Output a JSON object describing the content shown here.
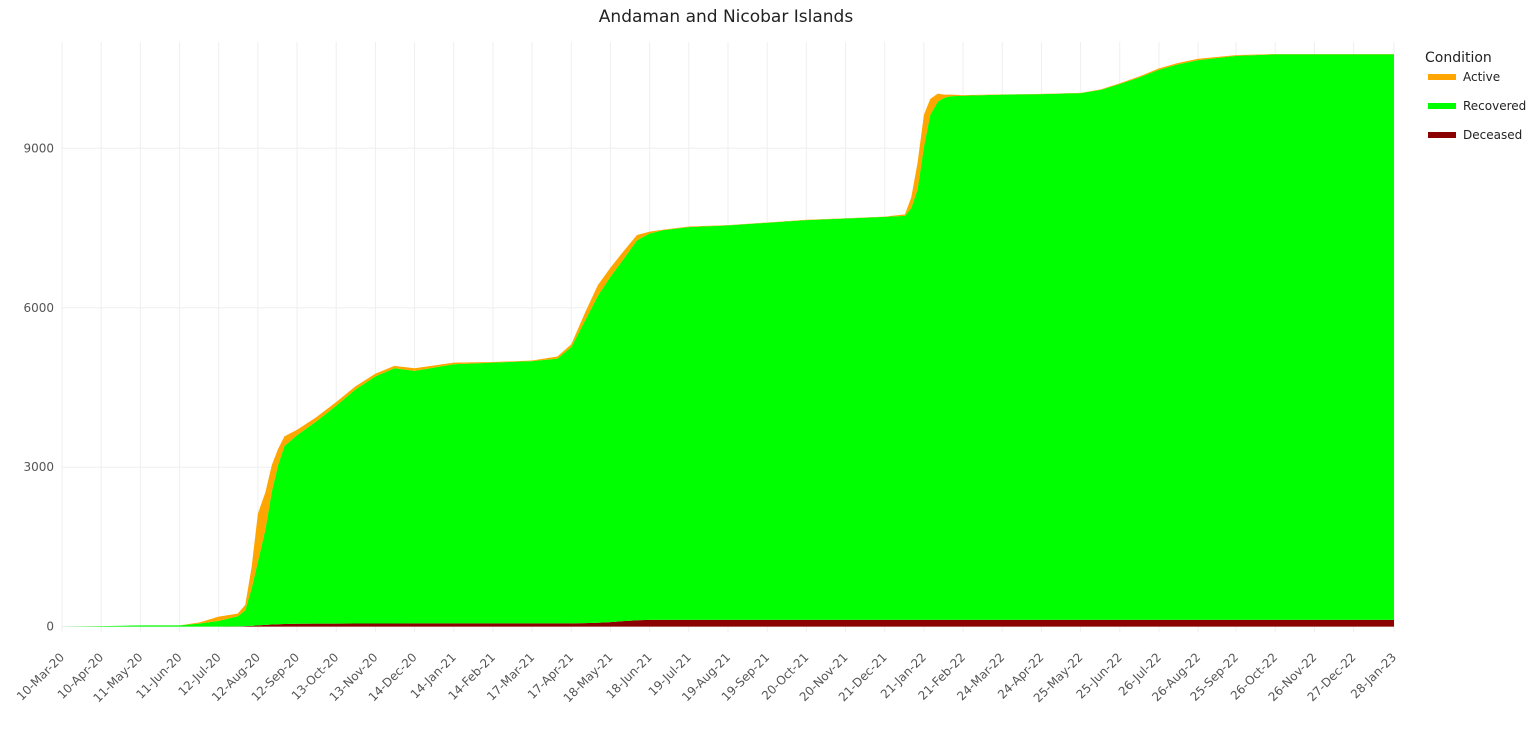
{
  "chart_data": {
    "type": "area",
    "stacked": true,
    "title": "Andaman and Nicobar Islands",
    "xlabel": "",
    "ylabel": "",
    "ylim": [
      -100,
      11000
    ],
    "y_ticks": [
      0,
      3000,
      6000,
      9000
    ],
    "x_ticks": [
      "10-Mar-20",
      "10-Apr-20",
      "11-May-20",
      "11-Jun-20",
      "12-Jul-20",
      "12-Aug-20",
      "12-Sep-20",
      "13-Oct-20",
      "13-Nov-20",
      "14-Dec-20",
      "14-Jan-21",
      "14-Feb-21",
      "17-Mar-21",
      "17-Apr-21",
      "18-May-21",
      "18-Jun-21",
      "19-Jul-21",
      "19-Aug-21",
      "19-Sep-21",
      "20-Oct-21",
      "20-Nov-21",
      "21-Dec-21",
      "21-Jan-22",
      "21-Feb-22",
      "24-Mar-22",
      "24-Apr-22",
      "25-May-22",
      "25-Jun-22",
      "26-Jul-22",
      "26-Aug-22",
      "25-Sep-22",
      "26-Oct-22",
      "26-Nov-22",
      "27-Dec-22",
      "28-Jan-23"
    ],
    "grid": true,
    "legend": {
      "title": "Condition",
      "position": "top-right"
    },
    "x": [
      "10-Mar-20",
      "10-Apr-20",
      "11-May-20",
      "11-Jun-20",
      "27-Jun-20",
      "12-Jul-20",
      "27-Jul-20",
      "02-Aug-20",
      "07-Aug-20",
      "12-Aug-20",
      "18-Aug-20",
      "23-Aug-20",
      "28-Aug-20",
      "02-Sep-20",
      "12-Sep-20",
      "27-Sep-20",
      "13-Oct-20",
      "28-Oct-20",
      "13-Nov-20",
      "28-Nov-20",
      "14-Dec-20",
      "14-Jan-21",
      "14-Feb-21",
      "17-Mar-21",
      "06-Apr-21",
      "17-Apr-21",
      "28-Apr-21",
      "08-May-21",
      "18-May-21",
      "28-May-21",
      "08-Jun-21",
      "18-Jun-21",
      "29-Jun-21",
      "19-Jul-21",
      "19-Aug-21",
      "19-Sep-21",
      "20-Oct-21",
      "20-Nov-21",
      "21-Dec-21",
      "06-Jan-22",
      "11-Jan-22",
      "16-Jan-22",
      "21-Jan-22",
      "26-Jan-22",
      "01-Feb-22",
      "06-Feb-22",
      "11-Feb-22",
      "21-Feb-22",
      "24-Mar-22",
      "24-Apr-22",
      "25-May-22",
      "10-Jun-22",
      "25-Jun-22",
      "10-Jul-22",
      "26-Jul-22",
      "10-Aug-22",
      "26-Aug-22",
      "25-Sep-22",
      "26-Oct-22",
      "26-Nov-22",
      "27-Dec-22",
      "28-Jan-23"
    ],
    "series": [
      {
        "name": "Deceased",
        "color": "#8b0000",
        "values": [
          0,
          0,
          0,
          0,
          0,
          0,
          5,
          10,
          15,
          25,
          35,
          40,
          45,
          50,
          55,
          57,
          58,
          59,
          60,
          61,
          62,
          62,
          62,
          62,
          62,
          63,
          66,
          75,
          85,
          105,
          120,
          127,
          128,
          128,
          128,
          128,
          128,
          128,
          128,
          128,
          128,
          128,
          128,
          128,
          129,
          129,
          129,
          129,
          129,
          129,
          129,
          129,
          129,
          129,
          129,
          129,
          129,
          129,
          129,
          129,
          129,
          129
        ]
      },
      {
        "name": "Recovered",
        "color": "#00ff00",
        "values": [
          0,
          10,
          25,
          25,
          60,
          110,
          190,
          300,
          700,
          1200,
          1800,
          2500,
          3000,
          3350,
          3550,
          3800,
          4100,
          4400,
          4650,
          4800,
          4750,
          4875,
          4905,
          4935,
          4980,
          5200,
          5700,
          6150,
          6500,
          6800,
          7150,
          7270,
          7332,
          7390,
          7422,
          7472,
          7522,
          7552,
          7582,
          7600,
          7750,
          8100,
          8900,
          9500,
          9750,
          9820,
          9850,
          9860,
          9880,
          9890,
          9910,
          9970,
          10080,
          10200,
          10350,
          10450,
          10530,
          10610,
          10640,
          10640,
          10640,
          10640
        ]
      },
      {
        "name": "Active",
        "color": "#ffa500",
        "values": [
          0,
          0,
          0,
          0,
          20,
          80,
          50,
          100,
          400,
          900,
          700,
          500,
          300,
          180,
          100,
          80,
          70,
          60,
          50,
          45,
          50,
          30,
          12,
          10,
          40,
          50,
          150,
          200,
          170,
          150,
          100,
          35,
          10,
          10,
          5,
          5,
          5,
          5,
          5,
          30,
          200,
          500,
          600,
          300,
          150,
          60,
          30,
          11,
          5,
          5,
          5,
          10,
          15,
          20,
          25,
          25,
          25,
          15,
          5,
          5,
          5,
          5
        ]
      }
    ]
  }
}
